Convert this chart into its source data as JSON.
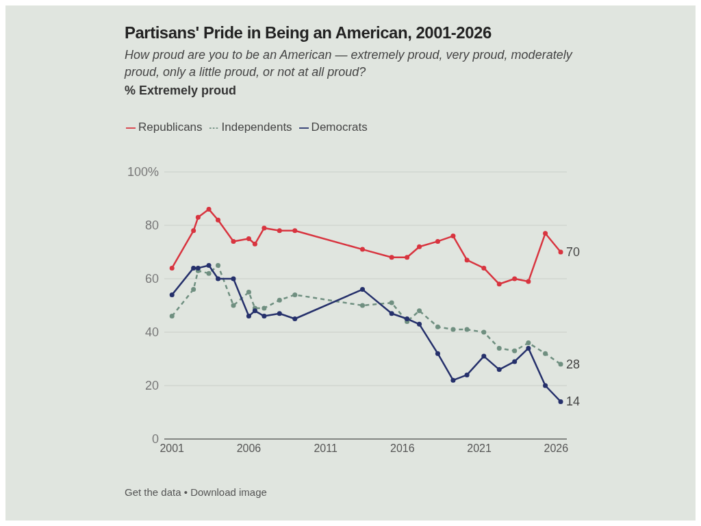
{
  "chart_data": {
    "type": "line",
    "title": "Partisans' Pride in Being an American, 2001-2026",
    "subtitle": "How proud are you to be an American — extremely proud, very proud, moderately proud, only a little proud, or not at all proud?",
    "annotations": [
      "% Extremely proud",
      "Get the data • Download image"
    ],
    "x": [
      2001.0,
      2002.4,
      2002.7,
      2003.4,
      2004.0,
      2005.0,
      2006.0,
      2006.4,
      2007.0,
      2008.0,
      2009.0,
      2013.4,
      2015.3,
      2016.3,
      2017.1,
      2018.3,
      2019.3,
      2020.2,
      2021.3,
      2022.3,
      2023.3,
      2024.2,
      2025.3,
      2026.3
    ],
    "xlim": [
      2000.5,
      2026.7
    ],
    "xticks": [
      2001,
      2006,
      2011,
      2016,
      2021,
      2026
    ],
    "ylim": [
      0,
      100
    ],
    "yticks": [
      0,
      20,
      40,
      60,
      80,
      {
        "value": 100,
        "label": "100%"
      }
    ],
    "series": [
      {
        "name": "Republicans",
        "color": "#d8343f",
        "line_style": "solid",
        "values": [
          64,
          78,
          83,
          86,
          82,
          74,
          75,
          73,
          79,
          78,
          78,
          71,
          68,
          68,
          72,
          74,
          76,
          67,
          64,
          58,
          60,
          59,
          77,
          70
        ],
        "value_labels": [
          null,
          null,
          null,
          null,
          null,
          null,
          null,
          null,
          null,
          null,
          null,
          null,
          null,
          null,
          null,
          null,
          null,
          null,
          null,
          null,
          null,
          null,
          null,
          "70"
        ]
      },
      {
        "name": "Independents",
        "color": "#6f8f80",
        "line_style": "dashed",
        "values": [
          46,
          56,
          63,
          62,
          65,
          50,
          55,
          49,
          49,
          52,
          54,
          50,
          51,
          44,
          48,
          42,
          41,
          41,
          40,
          34,
          33,
          36,
          32,
          28
        ],
        "value_labels": [
          null,
          null,
          null,
          null,
          null,
          null,
          null,
          null,
          null,
          null,
          null,
          null,
          null,
          null,
          null,
          null,
          null,
          null,
          null,
          null,
          null,
          null,
          null,
          "28"
        ]
      },
      {
        "name": "Democrats",
        "color": "#25306b",
        "line_style": "solid",
        "values": [
          54,
          64,
          64,
          65,
          60,
          60,
          46,
          48,
          46,
          47,
          45,
          56,
          47,
          45,
          43,
          32,
          22,
          24,
          31,
          26,
          29,
          34,
          20,
          14
        ],
        "value_labels": [
          null,
          null,
          null,
          null,
          null,
          null,
          null,
          null,
          null,
          null,
          null,
          null,
          null,
          null,
          null,
          null,
          null,
          null,
          null,
          null,
          null,
          null,
          null,
          "14"
        ]
      }
    ],
    "grid": "y",
    "legend": "top left",
    "marker": "circle"
  }
}
